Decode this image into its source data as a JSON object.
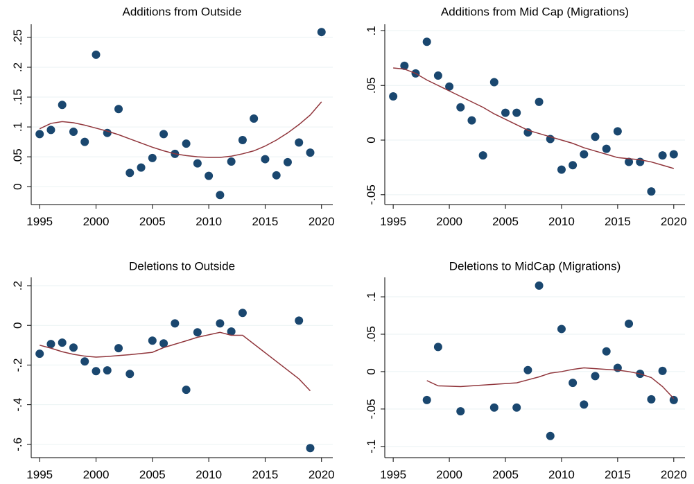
{
  "chart_data": [
    {
      "type": "scatter",
      "title": "Additions from Outside",
      "x": [
        1995,
        1996,
        1997,
        1998,
        1999,
        2000,
        2001,
        2002,
        2003,
        2004,
        2005,
        2006,
        2007,
        2008,
        2009,
        2010,
        2011,
        2012,
        2013,
        2014,
        2015,
        2016,
        2017,
        2018,
        2019,
        2020
      ],
      "series": [
        {
          "mode": "markers",
          "color": "#1a476f",
          "values": [
            0.088,
            0.095,
            0.137,
            0.092,
            0.075,
            0.221,
            0.09,
            0.13,
            0.023,
            0.032,
            0.048,
            0.088,
            0.055,
            0.072,
            0.039,
            0.018,
            -0.014,
            0.042,
            0.078,
            0.114,
            0.046,
            0.019,
            0.041,
            0.074,
            0.057,
            0.259
          ]
        },
        {
          "mode": "line",
          "color": "#90353b",
          "values": [
            0.097,
            0.106,
            0.109,
            0.107,
            0.103,
            0.098,
            0.093,
            0.087,
            0.08,
            0.073,
            0.066,
            0.06,
            0.055,
            0.052,
            0.05,
            0.049,
            0.049,
            0.051,
            0.055,
            0.06,
            0.068,
            0.078,
            0.09,
            0.104,
            0.12,
            0.142
          ]
        }
      ],
      "xlim": [
        1994.25,
        2021
      ],
      "xticks": [
        1995,
        2000,
        2005,
        2010,
        2015,
        2020
      ],
      "ylim": [
        -0.03,
        0.272
      ],
      "yticks": [
        0,
        {
          "value": 0.05,
          "label": ".05"
        },
        {
          "value": 0.1,
          "label": ".1"
        },
        {
          "value": 0.15,
          "label": ".15"
        },
        {
          "value": 0.2,
          "label": ".2"
        },
        {
          "value": 0.25,
          "label": ".25"
        }
      ],
      "grid": true
    },
    {
      "type": "scatter",
      "title": "Additions from Mid Cap (Migrations)",
      "x": [
        1995,
        1996,
        1997,
        1998,
        1999,
        2000,
        2001,
        2002,
        2003,
        2004,
        2005,
        2006,
        2007,
        2008,
        2009,
        2010,
        2011,
        2012,
        2013,
        2014,
        2015,
        2016,
        2017,
        2018,
        2019,
        2020
      ],
      "series": [
        {
          "mode": "markers",
          "color": "#1a476f",
          "values": [
            0.04,
            0.068,
            0.061,
            0.09,
            0.059,
            0.049,
            0.03,
            0.018,
            -0.014,
            0.053,
            0.025,
            0.025,
            0.007,
            0.035,
            0.001,
            -0.027,
            -0.023,
            -0.013,
            0.003,
            -0.008,
            0.008,
            -0.02,
            -0.02,
            -0.047,
            -0.014,
            -0.013
          ]
        },
        {
          "mode": "line",
          "color": "#90353b",
          "values": [
            0.066,
            0.065,
            0.061,
            0.055,
            0.05,
            0.045,
            0.04,
            0.035,
            0.03,
            0.024,
            0.019,
            0.014,
            0.009,
            0.006,
            0.003,
            0,
            -0.003,
            -0.007,
            -0.01,
            -0.013,
            -0.016,
            -0.017,
            -0.018,
            -0.02,
            -0.023,
            -0.026
          ]
        }
      ],
      "xlim": [
        1994.25,
        2021
      ],
      "xticks": [
        1995,
        2000,
        2005,
        2010,
        2015,
        2020
      ],
      "ylim": [
        -0.059,
        0.106
      ],
      "yticks": [
        {
          "value": -0.05,
          "label": "-.05"
        },
        0,
        {
          "value": 0.05,
          "label": ".05"
        },
        {
          "value": 0.1,
          "label": ".1"
        }
      ],
      "grid": true
    },
    {
      "type": "scatter",
      "title": "Deletions to Outside",
      "x": [
        1995,
        1996,
        1997,
        1998,
        1999,
        2000,
        2001,
        2002,
        2003,
        2005,
        2006,
        2007,
        2008,
        2009,
        2011,
        2012,
        2013,
        2018,
        2019
      ],
      "series": [
        {
          "mode": "markers",
          "color": "#1a476f",
          "values": [
            -0.143,
            -0.094,
            -0.087,
            -0.112,
            -0.182,
            -0.231,
            -0.227,
            -0.115,
            -0.245,
            -0.077,
            -0.091,
            0.01,
            -0.325,
            -0.035,
            0.01,
            -0.031,
            0.063,
            0.024,
            -0.619
          ]
        },
        {
          "mode": "line",
          "color": "#90353b",
          "values": [
            -0.1,
            -0.115,
            -0.133,
            -0.146,
            -0.155,
            -0.16,
            -0.157,
            -0.152,
            -0.148,
            -0.136,
            -0.112,
            -0.095,
            -0.078,
            -0.06,
            -0.035,
            -0.05,
            -0.05,
            -0.27,
            -0.33
          ]
        }
      ],
      "xlim": [
        1994.25,
        2021
      ],
      "xticks": [
        1995,
        2000,
        2005,
        2010,
        2015,
        2020
      ],
      "ylim": [
        -0.667,
        0.242
      ],
      "yticks": [
        {
          "value": -0.6,
          "label": "-.6"
        },
        {
          "value": -0.4,
          "label": "-.4"
        },
        {
          "value": -0.2,
          "label": "-.2"
        },
        0,
        {
          "value": 0.2,
          "label": ".2"
        }
      ],
      "grid": true
    },
    {
      "type": "scatter",
      "title": "Deletions to MidCap (Migrations)",
      "x": [
        1998,
        1999,
        2001,
        2004,
        2006,
        2007,
        2008,
        2009,
        2010,
        2011,
        2012,
        2013,
        2014,
        2015,
        2016,
        2017,
        2018,
        2019,
        2020
      ],
      "series": [
        {
          "mode": "markers",
          "color": "#1a476f",
          "values": [
            -0.038,
            0.033,
            -0.053,
            -0.048,
            -0.048,
            0.002,
            0.115,
            -0.086,
            0.057,
            -0.015,
            -0.044,
            -0.006,
            0.027,
            0.005,
            0.064,
            -0.003,
            -0.037,
            0.001,
            -0.038
          ]
        },
        {
          "mode": "line",
          "color": "#90353b",
          "values": [
            -0.012,
            -0.019,
            -0.02,
            -0.017,
            -0.015,
            -0.011,
            -0.007,
            -0.002,
            0,
            0.003,
            0.005,
            0.004,
            0.003,
            0.002,
            0,
            -0.003,
            -0.008,
            -0.02,
            -0.036
          ]
        }
      ],
      "xlim": [
        1994.25,
        2021
      ],
      "xticks": [
        1995,
        2000,
        2005,
        2010,
        2015,
        2020
      ],
      "ylim": [
        -0.115,
        0.126
      ],
      "yticks": [
        {
          "value": -0.1,
          "label": "-.1"
        },
        {
          "value": -0.05,
          "label": "-.05"
        },
        0,
        {
          "value": 0.05,
          "label": ".05"
        },
        {
          "value": 0.1,
          "label": ".1"
        }
      ],
      "grid": true
    }
  ]
}
